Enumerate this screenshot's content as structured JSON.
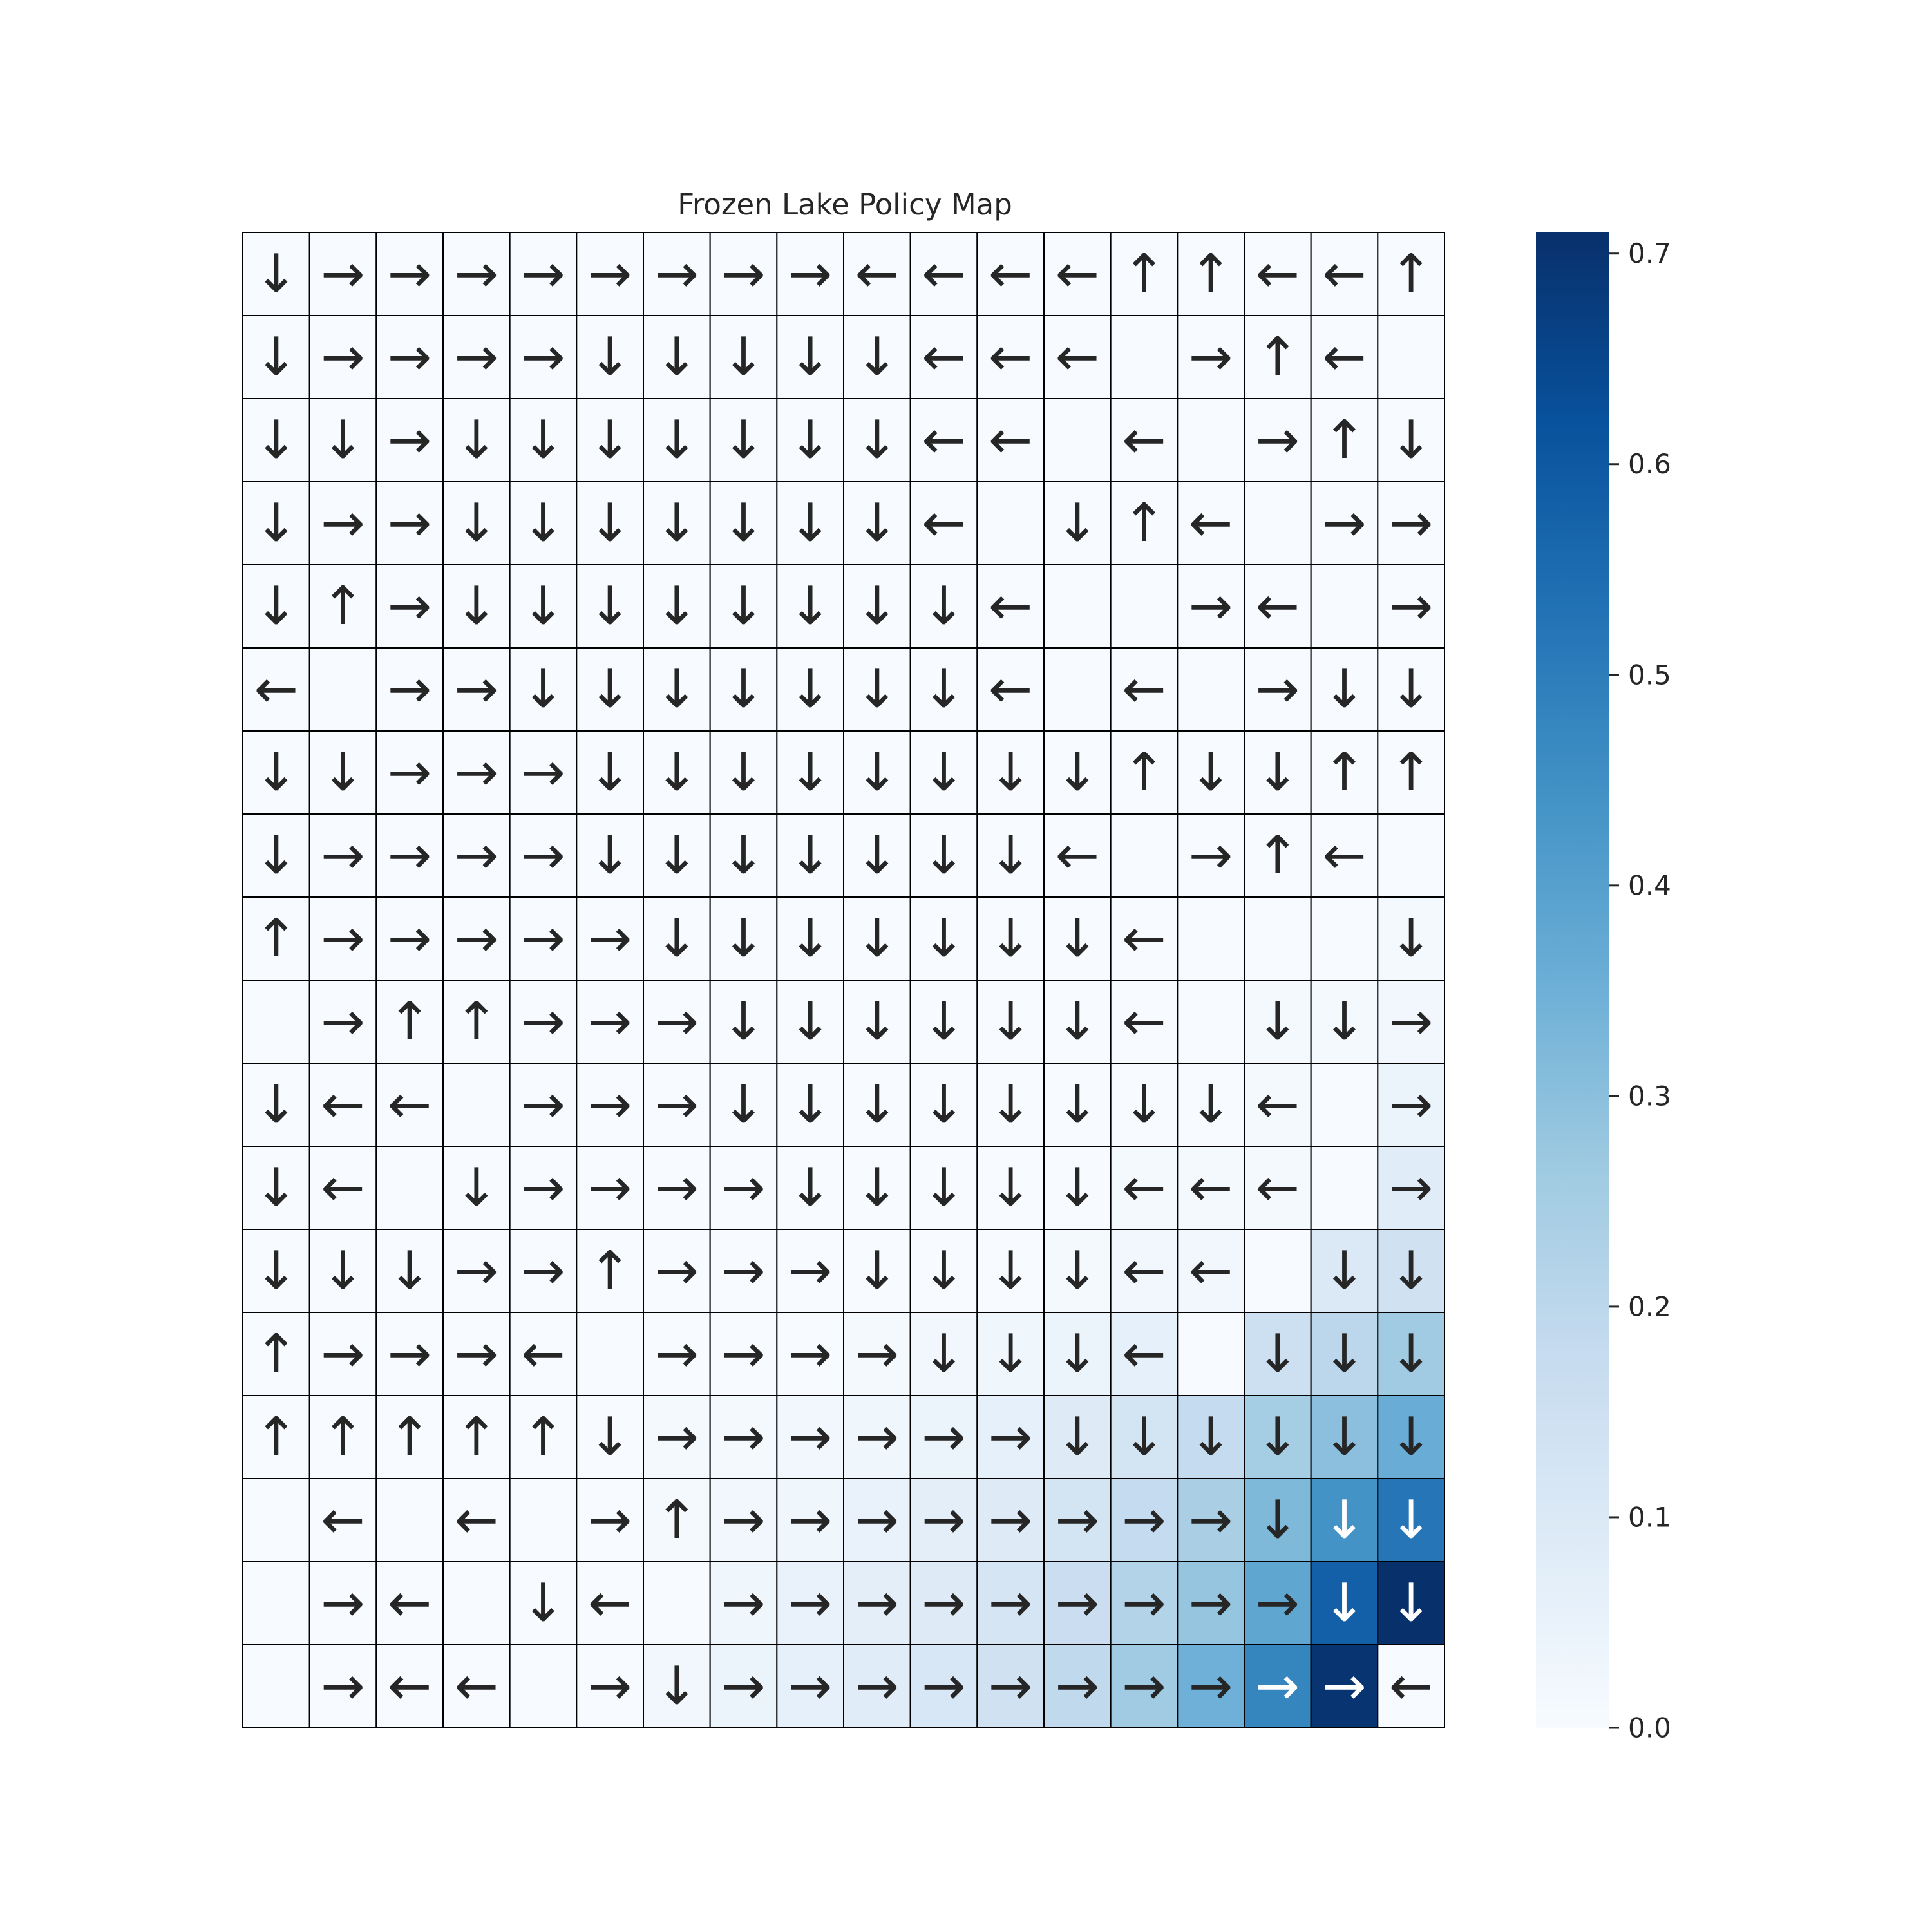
{
  "chart_data": {
    "type": "heatmap",
    "title": "Frozen Lake Policy Map",
    "xlabel": "",
    "ylabel": "",
    "colormap": "Blues",
    "colors": {
      "low": "#f7fbff",
      "high": "#08306b",
      "grid_line": "#000000",
      "arrow_dark": "#262626",
      "arrow_light": "#ffffff"
    },
    "colorbar": {
      "range": [
        0,
        0.71
      ],
      "ticks": [
        0.0,
        0.1,
        0.2,
        0.3,
        0.4,
        0.5,
        0.6,
        0.7
      ],
      "tick_labels": [
        "0.0",
        "0.1",
        "0.2",
        "0.3",
        "0.4",
        "0.5",
        "0.6",
        "0.7"
      ]
    },
    "rows": 18,
    "cols": 18,
    "arrows": [
      [
        "↓",
        "→",
        "→",
        "→",
        "→",
        "→",
        "→",
        "→",
        "→",
        "←",
        "←",
        "←",
        "←",
        "↑",
        "↑",
        "←",
        "←",
        "↑"
      ],
      [
        "↓",
        "→",
        "→",
        "→",
        "→",
        "↓",
        "↓",
        "↓",
        "↓",
        "↓",
        "←",
        "←",
        "←",
        "",
        "→",
        "↑",
        "←",
        ""
      ],
      [
        "↓",
        "↓",
        "→",
        "↓",
        "↓",
        "↓",
        "↓",
        "↓",
        "↓",
        "↓",
        "←",
        "←",
        "",
        "←",
        "",
        "→",
        "↑",
        "↓"
      ],
      [
        "↓",
        "→",
        "→",
        "↓",
        "↓",
        "↓",
        "↓",
        "↓",
        "↓",
        "↓",
        "←",
        "",
        "↓",
        "↑",
        "←",
        "",
        "→",
        "→"
      ],
      [
        "↓",
        "↑",
        "→",
        "↓",
        "↓",
        "↓",
        "↓",
        "↓",
        "↓",
        "↓",
        "↓",
        "←",
        "",
        "",
        "→",
        "←",
        "",
        "→"
      ],
      [
        "←",
        "",
        "→",
        "→",
        "↓",
        "↓",
        "↓",
        "↓",
        "↓",
        "↓",
        "↓",
        "←",
        "",
        "←",
        "",
        "→",
        "↓",
        "↓"
      ],
      [
        "↓",
        "↓",
        "→",
        "→",
        "→",
        "↓",
        "↓",
        "↓",
        "↓",
        "↓",
        "↓",
        "↓",
        "↓",
        "↑",
        "↓",
        "↓",
        "↑",
        "↑"
      ],
      [
        "↓",
        "→",
        "→",
        "→",
        "→",
        "↓",
        "↓",
        "↓",
        "↓",
        "↓",
        "↓",
        "↓",
        "←",
        "",
        "→",
        "↑",
        "←",
        ""
      ],
      [
        "↑",
        "→",
        "→",
        "→",
        "→",
        "→",
        "↓",
        "↓",
        "↓",
        "↓",
        "↓",
        "↓",
        "↓",
        "←",
        "",
        "",
        "",
        "↓"
      ],
      [
        "",
        "→",
        "↑",
        "↑",
        "→",
        "→",
        "→",
        "↓",
        "↓",
        "↓",
        "↓",
        "↓",
        "↓",
        "←",
        "",
        "↓",
        "↓",
        "→"
      ],
      [
        "↓",
        "←",
        "←",
        "",
        "→",
        "→",
        "→",
        "↓",
        "↓",
        "↓",
        "↓",
        "↓",
        "↓",
        "↓",
        "↓",
        "←",
        "",
        "→"
      ],
      [
        "↓",
        "←",
        "",
        "↓",
        "→",
        "→",
        "→",
        "→",
        "↓",
        "↓",
        "↓",
        "↓",
        "↓",
        "←",
        "←",
        "←",
        "",
        "→"
      ],
      [
        "↓",
        "↓",
        "↓",
        "→",
        "→",
        "↑",
        "→",
        "→",
        "→",
        "↓",
        "↓",
        "↓",
        "↓",
        "←",
        "←",
        "",
        "↓",
        "↓"
      ],
      [
        "↑",
        "→",
        "→",
        "→",
        "←",
        "",
        "→",
        "→",
        "→",
        "→",
        "↓",
        "↓",
        "↓",
        "←",
        "",
        "↓",
        "↓",
        "↓"
      ],
      [
        "↑",
        "↑",
        "↑",
        "↑",
        "↑",
        "↓",
        "→",
        "→",
        "→",
        "→",
        "→",
        "→",
        "↓",
        "↓",
        "↓",
        "↓",
        "↓",
        "↓"
      ],
      [
        "",
        "←",
        "",
        "←",
        "",
        "→",
        "↑",
        "→",
        "→",
        "→",
        "→",
        "→",
        "→",
        "→",
        "→",
        "↓",
        "↓",
        "↓"
      ],
      [
        "",
        "→",
        "←",
        "",
        "↓",
        "←",
        "",
        "→",
        "→",
        "→",
        "→",
        "→",
        "→",
        "→",
        "→",
        "→",
        "↓",
        "↓"
      ],
      [
        "",
        "→",
        "←",
        "←",
        "",
        "→",
        "↓",
        "→",
        "→",
        "→",
        "→",
        "→",
        "→",
        "→",
        "→",
        "→",
        "→",
        "←"
      ]
    ],
    "values": [
      [
        0,
        0,
        0,
        0,
        0,
        0,
        0,
        0,
        0,
        0,
        0,
        0,
        0,
        0,
        0,
        0,
        0,
        0
      ],
      [
        0,
        0,
        0,
        0,
        0,
        0,
        0,
        0,
        0,
        0,
        0,
        0,
        0,
        0,
        0,
        0,
        0,
        0
      ],
      [
        0,
        0,
        0,
        0,
        0,
        0,
        0,
        0,
        0,
        0,
        0,
        0,
        0,
        0,
        0,
        0,
        0,
        0
      ],
      [
        0,
        0,
        0,
        0,
        0,
        0,
        0,
        0,
        0,
        0,
        0,
        0,
        0,
        0,
        0,
        0,
        0,
        0
      ],
      [
        0,
        0,
        0,
        0,
        0,
        0,
        0,
        0,
        0,
        0,
        0,
        0,
        0,
        0,
        0,
        0,
        0,
        0
      ],
      [
        0,
        0,
        0,
        0,
        0,
        0,
        0,
        0,
        0,
        0,
        0,
        0,
        0,
        0,
        0,
        0,
        0,
        0
      ],
      [
        0,
        0,
        0,
        0,
        0,
        0,
        0,
        0,
        0,
        0,
        0,
        0,
        0,
        0,
        0,
        0,
        0,
        0
      ],
      [
        0,
        0,
        0,
        0,
        0,
        0,
        0,
        0,
        0,
        0,
        0,
        0,
        0,
        0,
        0,
        0,
        0,
        0
      ],
      [
        0,
        0,
        0,
        0,
        0,
        0,
        0,
        0,
        0,
        0,
        0,
        0,
        0,
        0,
        0,
        0,
        0,
        0.01
      ],
      [
        0,
        0,
        0,
        0,
        0,
        0,
        0,
        0,
        0,
        0,
        0,
        0,
        0,
        0,
        0,
        0.01,
        0.01,
        0.02
      ],
      [
        0,
        0,
        0,
        0,
        0,
        0,
        0,
        0,
        0,
        0,
        0,
        0,
        0,
        0,
        0,
        0.01,
        0,
        0.04
      ],
      [
        0,
        0,
        0,
        0,
        0,
        0,
        0,
        0,
        0,
        0,
        0,
        0,
        0,
        0.01,
        0.01,
        0.01,
        0,
        0.08
      ],
      [
        0,
        0,
        0,
        0,
        0,
        0,
        0,
        0,
        0,
        0,
        0,
        0,
        0.01,
        0.02,
        0.02,
        0,
        0.1,
        0.14
      ],
      [
        0,
        0,
        0,
        0,
        0,
        0,
        0,
        0,
        0,
        0.01,
        0.02,
        0.03,
        0.04,
        0.06,
        0,
        0.15,
        0.2,
        0.26
      ],
      [
        0,
        0,
        0,
        0,
        0,
        0,
        0.01,
        0.01,
        0.02,
        0.03,
        0.04,
        0.06,
        0.09,
        0.13,
        0.18,
        0.25,
        0.3,
        0.36
      ],
      [
        0,
        0,
        0,
        0,
        0,
        0,
        0.01,
        0.02,
        0.03,
        0.05,
        0.07,
        0.09,
        0.13,
        0.18,
        0.24,
        0.32,
        0.44,
        0.52
      ],
      [
        0,
        0,
        0,
        0,
        0,
        0,
        0,
        0.03,
        0.05,
        0.07,
        0.09,
        0.12,
        0.16,
        0.22,
        0.28,
        0.38,
        0.58,
        0.71
      ],
      [
        0,
        0,
        0,
        0,
        0,
        0,
        0.02,
        0.04,
        0.06,
        0.08,
        0.11,
        0.14,
        0.19,
        0.26,
        0.35,
        0.48,
        0.7,
        0
      ]
    ]
  }
}
